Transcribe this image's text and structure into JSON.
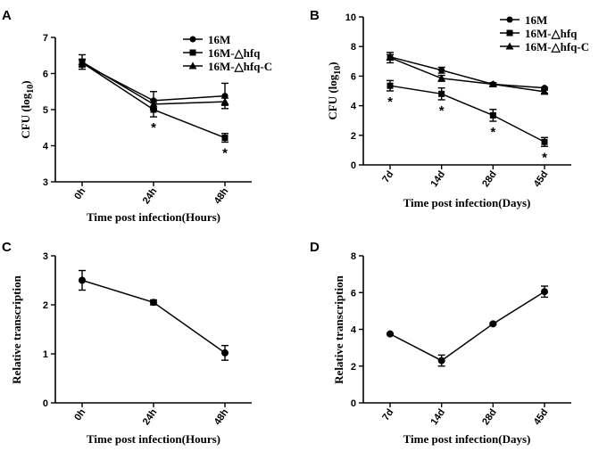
{
  "chart_data": [
    {
      "panel": "A",
      "type": "line",
      "categories": [
        "0h",
        "24h",
        "48h"
      ],
      "series": [
        {
          "name": "16M",
          "marker": "circle",
          "values": [
            6.28,
            5.25,
            5.38
          ],
          "errors": [
            0.1,
            0.25,
            0.35
          ],
          "stars": [
            null,
            null,
            null
          ]
        },
        {
          "name": "16M-△hfq",
          "marker": "square",
          "values": [
            6.3,
            5.0,
            4.22
          ],
          "errors": [
            0.1,
            0.2,
            0.12
          ],
          "stars": [
            null,
            "*",
            "*"
          ]
        },
        {
          "name": "16M-△hfq-C",
          "marker": "triangle",
          "values": [
            6.32,
            5.15,
            5.22
          ],
          "errors": [
            0.2,
            0.12,
            0.1
          ],
          "stars": [
            null,
            null,
            null
          ]
        }
      ],
      "title": "",
      "xlabel": "Time post infection(Hours)",
      "ylabel": "CFU (log",
      "ylabel_sub": "10",
      "ylabel_end": ")",
      "ylim": [
        3,
        7
      ],
      "yticks": [
        3,
        4,
        5,
        6,
        7
      ],
      "legend": "top-right"
    },
    {
      "panel": "B",
      "type": "line",
      "categories": [
        "7d",
        "14d",
        "28d",
        "45d"
      ],
      "series": [
        {
          "name": "16M",
          "marker": "circle",
          "values": [
            7.3,
            6.4,
            5.45,
            5.2
          ],
          "errors": [
            0.15,
            0.2,
            0.1,
            0.05
          ],
          "stars": [
            null,
            null,
            null,
            null
          ]
        },
        {
          "name": "16M-△hfq",
          "marker": "square",
          "values": [
            5.35,
            4.8,
            3.35,
            1.55
          ],
          "errors": [
            0.35,
            0.4,
            0.4,
            0.3
          ],
          "stars": [
            "*",
            "*",
            "*",
            "*"
          ]
        },
        {
          "name": "16M-△hfq-C",
          "marker": "triangle",
          "values": [
            7.25,
            5.85,
            5.45,
            4.95
          ],
          "errors": [
            0.35,
            0.2,
            0.1,
            0.1
          ],
          "stars": [
            null,
            null,
            null,
            null
          ]
        }
      ],
      "title": "",
      "xlabel": "Time post infection(Days)",
      "ylabel": "CFU (log",
      "ylabel_sub": "10",
      "ylabel_end": ")",
      "ylim": [
        0,
        10
      ],
      "yticks": [
        0,
        2,
        4,
        6,
        8,
        10
      ],
      "legend": "top-right"
    },
    {
      "panel": "C",
      "type": "line",
      "categories": [
        "0h",
        "24h",
        "48h"
      ],
      "series": [
        {
          "name": "",
          "marker": "circle",
          "values": [
            2.5,
            2.05,
            1.02
          ],
          "errors": [
            0.2,
            0.05,
            0.15
          ],
          "stars": [
            null,
            null,
            null
          ]
        }
      ],
      "title": "",
      "xlabel": "Time post infection(Hours)",
      "ylabel": "Relative transcription",
      "ylabel_sub": "",
      "ylabel_end": "",
      "ylim": [
        0,
        3
      ],
      "yticks": [
        0,
        1,
        2,
        3
      ],
      "legend": "none"
    },
    {
      "panel": "D",
      "type": "line",
      "categories": [
        "7d",
        "14d",
        "28d",
        "45d"
      ],
      "series": [
        {
          "name": "",
          "marker": "circle",
          "values": [
            3.75,
            2.3,
            4.3,
            6.05
          ],
          "errors": [
            0.05,
            0.3,
            0.05,
            0.3
          ],
          "stars": [
            null,
            null,
            null,
            null
          ]
        }
      ],
      "title": "",
      "xlabel": "Time post infection(Days)",
      "ylabel": "Relative transcription",
      "ylabel_sub": "",
      "ylabel_end": "",
      "ylim": [
        0,
        8
      ],
      "yticks": [
        0,
        2,
        4,
        6,
        8
      ],
      "legend": "none"
    }
  ]
}
